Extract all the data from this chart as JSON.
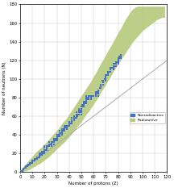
{
  "title": "",
  "xlabel": "Number of protons (Z)",
  "ylabel": "Number of neutrons (N)",
  "xlim": [
    0,
    120
  ],
  "ylim": [
    0,
    180
  ],
  "xticks": [
    0,
    10,
    20,
    30,
    40,
    50,
    60,
    70,
    80,
    90,
    100,
    110,
    120
  ],
  "yticks": [
    0,
    20,
    40,
    60,
    80,
    100,
    120,
    140,
    160,
    180
  ],
  "stable_color": "#4472C4",
  "radioactive_color": "#B5C97A",
  "diagonal_color": "#aaaaaa",
  "legend_stable": "Nonradioactive",
  "legend_radioactive": "Radioactive",
  "stable_nuclei": [
    [
      1,
      0
    ],
    [
      1,
      1
    ],
    [
      2,
      1
    ],
    [
      2,
      2
    ],
    [
      3,
      3
    ],
    [
      3,
      4
    ],
    [
      4,
      5
    ],
    [
      5,
      5
    ],
    [
      5,
      6
    ],
    [
      6,
      6
    ],
    [
      6,
      7
    ],
    [
      7,
      7
    ],
    [
      7,
      8
    ],
    [
      8,
      8
    ],
    [
      8,
      9
    ],
    [
      8,
      10
    ],
    [
      9,
      10
    ],
    [
      10,
      10
    ],
    [
      10,
      11
    ],
    [
      10,
      12
    ],
    [
      11,
      12
    ],
    [
      12,
      12
    ],
    [
      12,
      13
    ],
    [
      12,
      14
    ],
    [
      13,
      14
    ],
    [
      14,
      14
    ],
    [
      14,
      15
    ],
    [
      14,
      16
    ],
    [
      15,
      16
    ],
    [
      16,
      16
    ],
    [
      16,
      17
    ],
    [
      16,
      18
    ],
    [
      16,
      20
    ],
    [
      17,
      18
    ],
    [
      17,
      20
    ],
    [
      18,
      18
    ],
    [
      18,
      20
    ],
    [
      18,
      22
    ],
    [
      19,
      20
    ],
    [
      19,
      22
    ],
    [
      20,
      20
    ],
    [
      20,
      22
    ],
    [
      20,
      23
    ],
    [
      20,
      24
    ],
    [
      20,
      26
    ],
    [
      20,
      28
    ],
    [
      21,
      24
    ],
    [
      22,
      24
    ],
    [
      22,
      25
    ],
    [
      22,
      26
    ],
    [
      22,
      27
    ],
    [
      22,
      28
    ],
    [
      23,
      28
    ],
    [
      24,
      28
    ],
    [
      24,
      29
    ],
    [
      24,
      30
    ],
    [
      24,
      32
    ],
    [
      25,
      30
    ],
    [
      26,
      28
    ],
    [
      26,
      30
    ],
    [
      26,
      31
    ],
    [
      26,
      32
    ],
    [
      27,
      32
    ],
    [
      28,
      30
    ],
    [
      28,
      32
    ],
    [
      28,
      33
    ],
    [
      28,
      34
    ],
    [
      28,
      36
    ],
    [
      29,
      34
    ],
    [
      29,
      36
    ],
    [
      30,
      34
    ],
    [
      30,
      36
    ],
    [
      30,
      37
    ],
    [
      30,
      38
    ],
    [
      30,
      40
    ],
    [
      31,
      38
    ],
    [
      31,
      40
    ],
    [
      32,
      38
    ],
    [
      32,
      40
    ],
    [
      32,
      41
    ],
    [
      32,
      42
    ],
    [
      32,
      44
    ],
    [
      33,
      42
    ],
    [
      34,
      40
    ],
    [
      34,
      42
    ],
    [
      34,
      43
    ],
    [
      34,
      44
    ],
    [
      34,
      46
    ],
    [
      35,
      44
    ],
    [
      35,
      46
    ],
    [
      36,
      44
    ],
    [
      36,
      46
    ],
    [
      36,
      47
    ],
    [
      36,
      48
    ],
    [
      36,
      50
    ],
    [
      37,
      48
    ],
    [
      37,
      50
    ],
    [
      38,
      46
    ],
    [
      38,
      48
    ],
    [
      38,
      49
    ],
    [
      38,
      50
    ],
    [
      39,
      50
    ],
    [
      40,
      50
    ],
    [
      40,
      51
    ],
    [
      40,
      52
    ],
    [
      40,
      54
    ],
    [
      41,
      52
    ],
    [
      42,
      52
    ],
    [
      42,
      54
    ],
    [
      42,
      55
    ],
    [
      42,
      56
    ],
    [
      42,
      58
    ],
    [
      44,
      56
    ],
    [
      44,
      57
    ],
    [
      44,
      58
    ],
    [
      44,
      60
    ],
    [
      45,
      58
    ],
    [
      46,
      58
    ],
    [
      46,
      60
    ],
    [
      46,
      62
    ],
    [
      46,
      64
    ],
    [
      47,
      60
    ],
    [
      47,
      62
    ],
    [
      48,
      62
    ],
    [
      48,
      64
    ],
    [
      48,
      65
    ],
    [
      48,
      66
    ],
    [
      48,
      68
    ],
    [
      49,
      64
    ],
    [
      49,
      66
    ],
    [
      50,
      62
    ],
    [
      50,
      64
    ],
    [
      50,
      66
    ],
    [
      50,
      67
    ],
    [
      50,
      68
    ],
    [
      50,
      70
    ],
    [
      51,
      70
    ],
    [
      51,
      72
    ],
    [
      52,
      70
    ],
    [
      52,
      72
    ],
    [
      52,
      73
    ],
    [
      52,
      74
    ],
    [
      52,
      76
    ],
    [
      53,
      74
    ],
    [
      53,
      76
    ],
    [
      54,
      74
    ],
    [
      54,
      76
    ],
    [
      54,
      77
    ],
    [
      54,
      78
    ],
    [
      54,
      80
    ],
    [
      54,
      82
    ],
    [
      55,
      78
    ],
    [
      55,
      80
    ],
    [
      56,
      78
    ],
    [
      56,
      80
    ],
    [
      56,
      81
    ],
    [
      56,
      82
    ],
    [
      57,
      82
    ],
    [
      58,
      78
    ],
    [
      58,
      80
    ],
    [
      58,
      82
    ],
    [
      59,
      82
    ],
    [
      60,
      82
    ],
    [
      62,
      82
    ],
    [
      62,
      83
    ],
    [
      62,
      84
    ],
    [
      62,
      85
    ],
    [
      62,
      86
    ],
    [
      63,
      84
    ],
    [
      63,
      86
    ],
    [
      64,
      82
    ],
    [
      64,
      84
    ],
    [
      64,
      86
    ],
    [
      64,
      88
    ],
    [
      65,
      90
    ],
    [
      66,
      90
    ],
    [
      66,
      92
    ],
    [
      66,
      94
    ],
    [
      67,
      98
    ],
    [
      68,
      94
    ],
    [
      68,
      96
    ],
    [
      68,
      98
    ],
    [
      69,
      100
    ],
    [
      70,
      98
    ],
    [
      70,
      100
    ],
    [
      70,
      102
    ],
    [
      70,
      103
    ],
    [
      70,
      104
    ],
    [
      71,
      104
    ],
    [
      72,
      104
    ],
    [
      72,
      106
    ],
    [
      72,
      107
    ],
    [
      72,
      108
    ],
    [
      73,
      108
    ],
    [
      74,
      108
    ],
    [
      74,
      110
    ],
    [
      74,
      112
    ],
    [
      75,
      112
    ],
    [
      76,
      110
    ],
    [
      76,
      112
    ],
    [
      76,
      114
    ],
    [
      76,
      116
    ],
    [
      77,
      114
    ],
    [
      77,
      116
    ],
    [
      78,
      114
    ],
    [
      78,
      116
    ],
    [
      78,
      117
    ],
    [
      78,
      118
    ],
    [
      79,
      118
    ],
    [
      80,
      116
    ],
    [
      80,
      118
    ],
    [
      80,
      120
    ],
    [
      80,
      121
    ],
    [
      80,
      122
    ],
    [
      81,
      122
    ],
    [
      81,
      124
    ],
    [
      82,
      122
    ],
    [
      82,
      124
    ],
    [
      82,
      126
    ]
  ],
  "radioactive_band_upper": [
    [
      0,
      0
    ],
    [
      2,
      5
    ],
    [
      4,
      8
    ],
    [
      6,
      11
    ],
    [
      8,
      14
    ],
    [
      10,
      17
    ],
    [
      12,
      20
    ],
    [
      14,
      23
    ],
    [
      16,
      25
    ],
    [
      18,
      27
    ],
    [
      20,
      30
    ],
    [
      22,
      33
    ],
    [
      24,
      36
    ],
    [
      26,
      39
    ],
    [
      28,
      42
    ],
    [
      30,
      45
    ],
    [
      32,
      48
    ],
    [
      34,
      52
    ],
    [
      36,
      55
    ],
    [
      38,
      58
    ],
    [
      40,
      62
    ],
    [
      42,
      66
    ],
    [
      44,
      70
    ],
    [
      46,
      74
    ],
    [
      48,
      78
    ],
    [
      50,
      82
    ],
    [
      52,
      86
    ],
    [
      54,
      90
    ],
    [
      56,
      94
    ],
    [
      58,
      98
    ],
    [
      60,
      103
    ],
    [
      62,
      107
    ],
    [
      64,
      112
    ],
    [
      66,
      117
    ],
    [
      68,
      121
    ],
    [
      70,
      126
    ],
    [
      72,
      131
    ],
    [
      74,
      135
    ],
    [
      76,
      140
    ],
    [
      78,
      145
    ],
    [
      80,
      150
    ],
    [
      82,
      154
    ],
    [
      84,
      159
    ],
    [
      86,
      164
    ],
    [
      88,
      168
    ],
    [
      90,
      172
    ],
    [
      92,
      175
    ],
    [
      94,
      177
    ],
    [
      96,
      178
    ],
    [
      98,
      178
    ],
    [
      100,
      178
    ],
    [
      102,
      178
    ],
    [
      104,
      178
    ],
    [
      106,
      178
    ],
    [
      108,
      178
    ],
    [
      110,
      178
    ],
    [
      112,
      178
    ],
    [
      114,
      178
    ],
    [
      116,
      178
    ],
    [
      118,
      178
    ]
  ],
  "radioactive_band_lower": [
    [
      0,
      0
    ],
    [
      2,
      0
    ],
    [
      4,
      1
    ],
    [
      6,
      2
    ],
    [
      8,
      3
    ],
    [
      10,
      5
    ],
    [
      12,
      6
    ],
    [
      14,
      8
    ],
    [
      16,
      9
    ],
    [
      18,
      11
    ],
    [
      20,
      13
    ],
    [
      22,
      15
    ],
    [
      24,
      17
    ],
    [
      26,
      20
    ],
    [
      28,
      22
    ],
    [
      30,
      25
    ],
    [
      32,
      27
    ],
    [
      34,
      30
    ],
    [
      36,
      32
    ],
    [
      38,
      35
    ],
    [
      40,
      38
    ],
    [
      42,
      41
    ],
    [
      44,
      44
    ],
    [
      46,
      48
    ],
    [
      48,
      51
    ],
    [
      50,
      54
    ],
    [
      52,
      58
    ],
    [
      54,
      62
    ],
    [
      56,
      65
    ],
    [
      58,
      69
    ],
    [
      60,
      73
    ],
    [
      62,
      77
    ],
    [
      64,
      81
    ],
    [
      66,
      86
    ],
    [
      68,
      90
    ],
    [
      70,
      94
    ],
    [
      72,
      99
    ],
    [
      74,
      103
    ],
    [
      76,
      108
    ],
    [
      78,
      112
    ],
    [
      80,
      116
    ],
    [
      82,
      120
    ],
    [
      84,
      124
    ],
    [
      86,
      128
    ],
    [
      88,
      132
    ],
    [
      90,
      136
    ],
    [
      92,
      140
    ],
    [
      94,
      143
    ],
    [
      96,
      146
    ],
    [
      98,
      149
    ],
    [
      100,
      152
    ],
    [
      102,
      154
    ],
    [
      104,
      156
    ],
    [
      106,
      158
    ],
    [
      108,
      160
    ],
    [
      110,
      162
    ],
    [
      112,
      164
    ],
    [
      114,
      165
    ],
    [
      116,
      166
    ],
    [
      118,
      166
    ]
  ]
}
